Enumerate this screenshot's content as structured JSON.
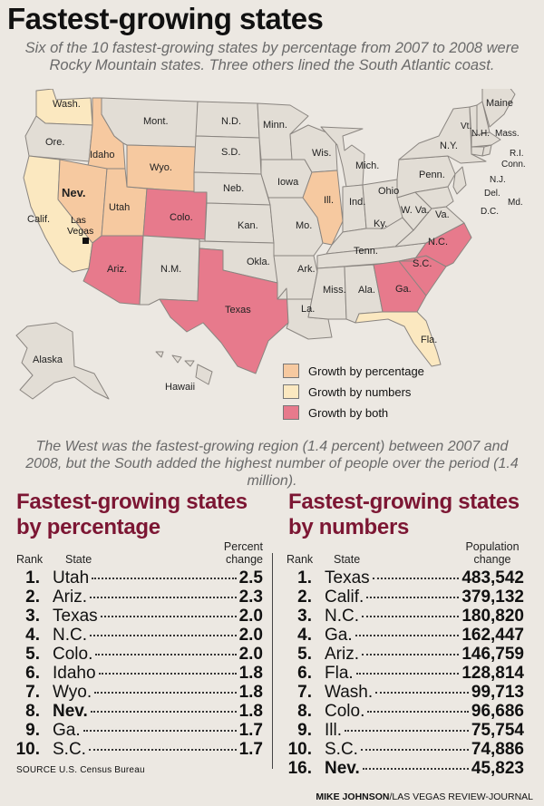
{
  "title": "Fastest-growing states",
  "subtitle": "Six of the 10 fastest-growing states by percentage from 2007 to 2008 were Rocky Mountain states. Three others lined the South Atlantic coast.",
  "colors": {
    "percentage": "#f6c9a0",
    "numbers": "#fbe8c0",
    "both": "#e77a8c",
    "other": "#e2ddd5",
    "accent": "#7c1633"
  },
  "map": {
    "state_labels": [
      "Wash.",
      "Ore.",
      "Calif.",
      "Idaho",
      "Nev.",
      "Utah",
      "Mont.",
      "Wyo.",
      "Colo.",
      "Ariz.",
      "N.M.",
      "N.D.",
      "S.D.",
      "Neb.",
      "Kan.",
      "Okla.",
      "Texas",
      "Minn.",
      "Iowa",
      "Mo.",
      "Ark.",
      "La.",
      "Wis.",
      "Ill.",
      "Mich.",
      "Ind.",
      "Ohio",
      "Ky.",
      "Tenn.",
      "Miss.",
      "Ala.",
      "Ga.",
      "Fla.",
      "S.C.",
      "N.C.",
      "Va.",
      "W. Va.",
      "Penn.",
      "N.Y.",
      "Maine",
      "Vt.",
      "N.H.",
      "Mass.",
      "R.I.",
      "Conn.",
      "N.J.",
      "Del.",
      "Md.",
      "D.C.",
      "Alaska",
      "Hawaii"
    ],
    "city_label": "Las Vegas"
  },
  "legend": [
    {
      "label": "Growth by percentage",
      "key": "percentage"
    },
    {
      "label": "Growth by numbers",
      "key": "numbers"
    },
    {
      "label": "Growth by both",
      "key": "both"
    }
  ],
  "note": "The West was the fastest-growing region (1.4 percent) between 2007 and 2008, but the South added the highest number of people over the period (1.4 million).",
  "chart_data": [
    {
      "type": "table",
      "title": "Fastest-growing states by percentage",
      "columns": [
        "Rank",
        "State",
        "Percent change"
      ],
      "rows": [
        {
          "rank": "1.",
          "state": "Utah",
          "value": "2.5"
        },
        {
          "rank": "2.",
          "state": "Ariz.",
          "value": "2.3"
        },
        {
          "rank": "3.",
          "state": "Texas",
          "value": "2.0"
        },
        {
          "rank": "4.",
          "state": "N.C.",
          "value": "2.0"
        },
        {
          "rank": "5.",
          "state": "Colo.",
          "value": "2.0"
        },
        {
          "rank": "6.",
          "state": "Idaho",
          "value": "1.8"
        },
        {
          "rank": "7.",
          "state": "Wyo.",
          "value": "1.8"
        },
        {
          "rank": "8.",
          "state": "Nev.",
          "value": "1.8",
          "highlight": true
        },
        {
          "rank": "9.",
          "state": "Ga.",
          "value": "1.7"
        },
        {
          "rank": "10.",
          "state": "S.C.",
          "value": "1.7"
        }
      ]
    },
    {
      "type": "table",
      "title": "Fastest-growing states by numbers",
      "columns": [
        "Rank",
        "State",
        "Population change"
      ],
      "rows": [
        {
          "rank": "1.",
          "state": "Texas",
          "value": "483,542"
        },
        {
          "rank": "2.",
          "state": "Calif.",
          "value": "379,132"
        },
        {
          "rank": "3.",
          "state": "N.C.",
          "value": "180,820"
        },
        {
          "rank": "4.",
          "state": "Ga.",
          "value": "162,447"
        },
        {
          "rank": "5.",
          "state": "Ariz.",
          "value": "146,759"
        },
        {
          "rank": "6.",
          "state": "Fla.",
          "value": "128,814"
        },
        {
          "rank": "7.",
          "state": "Wash.",
          "value": "99,713"
        },
        {
          "rank": "8.",
          "state": "Colo.",
          "value": "96,686"
        },
        {
          "rank": "9.",
          "state": "Ill.",
          "value": "75,754"
        },
        {
          "rank": "10.",
          "state": "S.C.",
          "value": "74,886"
        },
        {
          "rank": "16.",
          "state": "Nev.",
          "value": "45,823",
          "highlight": true
        }
      ]
    }
  ],
  "source": "SOURCE U.S. Census Bureau",
  "credit": {
    "name": "MIKE JOHNSON",
    "org": "/LAS VEGAS REVIEW-JOURNAL"
  }
}
